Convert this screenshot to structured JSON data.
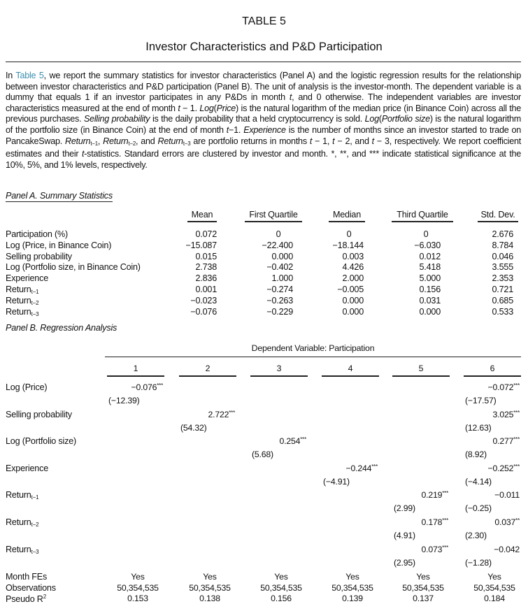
{
  "table_number": "TABLE 5",
  "table_title": "Investor Characteristics and P&D Participation",
  "caption": [
    {
      "t": "In "
    },
    {
      "t": "Table 5",
      "link": true
    },
    {
      "t": ", we report the summary statistics for investor characteristics (Panel A) and the logistic regression results for the relationship between investor characteristics and P&D participation (Panel B). The unit of analysis is the investor-month. The dependent variable is a dummy that equals 1 if an investor participates in any P&Ds in month "
    },
    {
      "t": "t",
      "i": true
    },
    {
      "t": ", and 0 otherwise. The independent variables are investor characteristics measured at the end of month "
    },
    {
      "t": "t",
      "i": true
    },
    {
      "t": " − 1. "
    },
    {
      "t": "Log",
      "i": true
    },
    {
      "t": "("
    },
    {
      "t": "Price",
      "i": true
    },
    {
      "t": ") is the natural logarithm of the median price (in Binance Coin) across all the previous purchases. "
    },
    {
      "t": "Selling probability",
      "i": true
    },
    {
      "t": " is the daily probability that a held cryptocurrency is sold. "
    },
    {
      "t": "Log",
      "i": true
    },
    {
      "t": "("
    },
    {
      "t": "Portfolio size",
      "i": true
    },
    {
      "t": ") is the natural logarithm of the portfolio size (in Binance Coin) at the end of month "
    },
    {
      "t": "t",
      "i": true
    },
    {
      "t": "−1. "
    },
    {
      "t": "Experience",
      "i": true
    },
    {
      "t": " is the number of months since an investor started to trade on PancakeSwap. "
    },
    {
      "t": "Return",
      "i": true
    },
    {
      "t": "t−1",
      "sub": true
    },
    {
      "t": ", "
    },
    {
      "t": "Return",
      "i": true
    },
    {
      "t": "t−2",
      "sub": true
    },
    {
      "t": ", and "
    },
    {
      "t": "Return",
      "i": true
    },
    {
      "t": "t−3",
      "sub": true
    },
    {
      "t": " are portfolio returns in months "
    },
    {
      "t": "t",
      "i": true
    },
    {
      "t": " − 1, "
    },
    {
      "t": "t",
      "i": true
    },
    {
      "t": " − 2, and "
    },
    {
      "t": "t",
      "i": true
    },
    {
      "t": " − 3, respectively. We report coefficient estimates and their "
    },
    {
      "t": "t",
      "i": true
    },
    {
      "t": "-statistics. Standard errors are clustered by investor and month. *, **, and *** indicate statistical significance at the 10%, 5%, and 1% levels, respectively."
    }
  ],
  "panel_a": {
    "label": "Panel A. Summary Statistics",
    "headers": [
      "Mean",
      "First Quartile",
      "Median",
      "Third Quartile",
      "Std. Dev."
    ],
    "rows": [
      {
        "label": "Participation (%)",
        "sub": "",
        "values": [
          "0.072",
          "0",
          "0",
          "0",
          "2.676"
        ]
      },
      {
        "label": "Log (Price, in Binance Coin)",
        "sub": "",
        "values": [
          "−15.087",
          "−22.400",
          "−18.144",
          "−6.030",
          "8.784"
        ]
      },
      {
        "label": "Selling probability",
        "sub": "",
        "values": [
          "0.015",
          "0.000",
          "0.003",
          "0.012",
          "0.046"
        ]
      },
      {
        "label": "Log (Portfolio size, in Binance Coin)",
        "sub": "",
        "values": [
          "2.738",
          "−0.402",
          "4.426",
          "5.418",
          "3.555"
        ]
      },
      {
        "label": "Experience",
        "sub": "",
        "values": [
          "2.836",
          "1.000",
          "2.000",
          "5.000",
          "2.353"
        ]
      },
      {
        "label": "Return",
        "sub": "t−1",
        "values": [
          "0.001",
          "−0.274",
          "−0.005",
          "0.156",
          "0.721"
        ]
      },
      {
        "label": "Return",
        "sub": "t−2",
        "values": [
          "−0.023",
          "−0.263",
          "0.000",
          "0.031",
          "0.685"
        ]
      },
      {
        "label": "Return",
        "sub": "t−3",
        "values": [
          "−0.076",
          "−0.229",
          "0.000",
          "0.000",
          "0.533"
        ]
      }
    ]
  },
  "panel_b": {
    "label": "Panel B. Regression Analysis",
    "dependent_variable": "Dependent Variable: Participation",
    "columns": [
      "1",
      "2",
      "3",
      "4",
      "5",
      "6"
    ],
    "rows": [
      {
        "label": "Log (Price)",
        "sub": "",
        "cells": [
          {
            "coef": "−0.076",
            "sig": "***",
            "t": "(−12.39)"
          },
          null,
          null,
          null,
          null,
          {
            "coef": "−0.072",
            "sig": "***",
            "t": "(−17.57)"
          }
        ]
      },
      {
        "label": "Selling probability",
        "sub": "",
        "cells": [
          null,
          {
            "coef": "2.722",
            "sig": "***",
            "t": "(54.32)"
          },
          null,
          null,
          null,
          {
            "coef": "3.025",
            "sig": "***",
            "t": "(12.63)"
          }
        ]
      },
      {
        "label": "Log (Portfolio size)",
        "sub": "",
        "cells": [
          null,
          null,
          {
            "coef": "0.254",
            "sig": "***",
            "t": "(5.68)"
          },
          null,
          null,
          {
            "coef": "0.277",
            "sig": "***",
            "t": "(8.92)"
          }
        ]
      },
      {
        "label": "Experience",
        "sub": "",
        "cells": [
          null,
          null,
          null,
          {
            "coef": "−0.244",
            "sig": "***",
            "t": "(−4.91)"
          },
          null,
          {
            "coef": "−0.252",
            "sig": "***",
            "t": "(−4.14)"
          }
        ]
      },
      {
        "label": "Return",
        "sub": "t−1",
        "cells": [
          null,
          null,
          null,
          null,
          {
            "coef": "0.219",
            "sig": "***",
            "t": "(2.99)"
          },
          {
            "coef": "−0.011",
            "sig": "",
            "t": "(−0.25)"
          }
        ]
      },
      {
        "label": "Return",
        "sub": "t−2",
        "cells": [
          null,
          null,
          null,
          null,
          {
            "coef": "0.178",
            "sig": "***",
            "t": "(4.91)"
          },
          {
            "coef": "0.037",
            "sig": "**",
            "t": "(2.30)"
          }
        ]
      },
      {
        "label": "Return",
        "sub": "t−3",
        "cells": [
          null,
          null,
          null,
          null,
          {
            "coef": "0.073",
            "sig": "***",
            "t": "(2.95)"
          },
          {
            "coef": "−0.042",
            "sig": "",
            "t": "(−1.28)"
          }
        ]
      }
    ],
    "footer": [
      {
        "label": "Month FEs",
        "sup": "",
        "values": [
          "Yes",
          "Yes",
          "Yes",
          "Yes",
          "Yes",
          "Yes"
        ]
      },
      {
        "label": "Observations",
        "sup": "",
        "values": [
          "50,354,535",
          "50,354,535",
          "50,354,535",
          "50,354,535",
          "50,354,535",
          "50,354,535"
        ]
      },
      {
        "label": "Pseudo R",
        "sup": "2",
        "values": [
          "0.153",
          "0.138",
          "0.156",
          "0.139",
          "0.137",
          "0.184"
        ]
      }
    ]
  }
}
